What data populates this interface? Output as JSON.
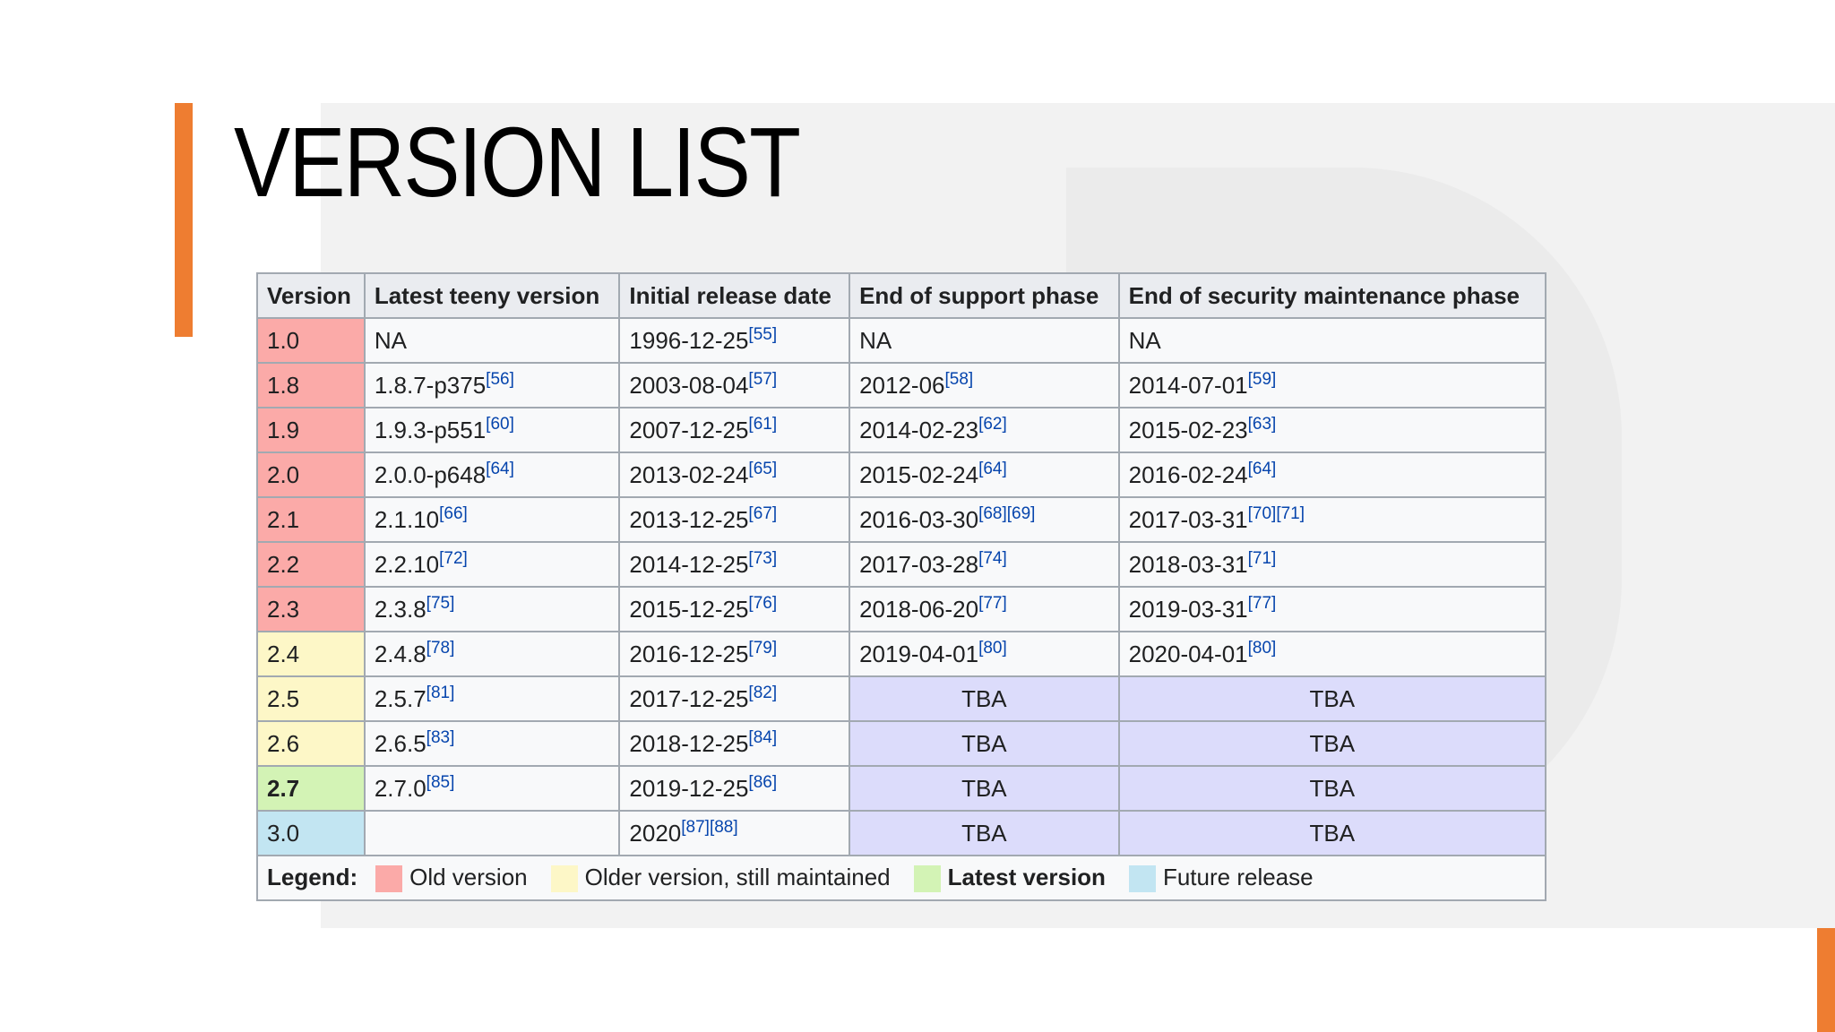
{
  "header": {
    "title": "VERSION LIST"
  },
  "table": {
    "columns": [
      "Version",
      "Latest teeny version",
      "Initial release date",
      "End of support phase",
      "End of security maintenance phase"
    ],
    "rows": [
      {
        "color": "#fbaaa8",
        "cells": [
          "1.0",
          {
            "text": "NA"
          },
          {
            "text": "1996-12-25",
            "ref": "[55]"
          },
          {
            "text": "NA"
          },
          {
            "text": "NA"
          }
        ]
      },
      {
        "color": "#fbaaa8",
        "cells": [
          "1.8",
          {
            "text": "1.8.7-p375",
            "ref": "[56]"
          },
          {
            "text": "2003-08-04",
            "ref": "[57]"
          },
          {
            "text": "2012-06",
            "ref": "[58]"
          },
          {
            "text": "2014-07-01",
            "ref": "[59]"
          }
        ]
      },
      {
        "color": "#fbaaa8",
        "cells": [
          "1.9",
          {
            "text": "1.9.3-p551",
            "ref": "[60]"
          },
          {
            "text": "2007-12-25",
            "ref": "[61]"
          },
          {
            "text": "2014-02-23",
            "ref": "[62]"
          },
          {
            "text": "2015-02-23",
            "ref": "[63]"
          }
        ]
      },
      {
        "color": "#fbaaa8",
        "cells": [
          "2.0",
          {
            "text": "2.0.0-p648",
            "ref": "[64]"
          },
          {
            "text": "2013-02-24",
            "ref": "[65]"
          },
          {
            "text": "2015-02-24",
            "ref": "[64]"
          },
          {
            "text": "2016-02-24",
            "ref": "[64]"
          }
        ]
      },
      {
        "color": "#fbaaa8",
        "cells": [
          "2.1",
          {
            "text": "2.1.10",
            "ref": "[66]"
          },
          {
            "text": "2013-12-25",
            "ref": "[67]"
          },
          {
            "text": "2016-03-30",
            "ref": "[68][69]"
          },
          {
            "text": "2017-03-31",
            "ref": "[70][71]"
          }
        ]
      },
      {
        "color": "#fbaaa8",
        "cells": [
          "2.2",
          {
            "text": "2.2.10",
            "ref": "[72]"
          },
          {
            "text": "2014-12-25",
            "ref": "[73]"
          },
          {
            "text": "2017-03-28",
            "ref": "[74]"
          },
          {
            "text": "2018-03-31",
            "ref": "[71]"
          }
        ]
      },
      {
        "color": "#fbaaa8",
        "cells": [
          "2.3",
          {
            "text": "2.3.8",
            "ref": "[75]"
          },
          {
            "text": "2015-12-25",
            "ref": "[76]"
          },
          {
            "text": "2018-06-20",
            "ref": "[77]"
          },
          {
            "text": "2019-03-31",
            "ref": "[77]"
          }
        ]
      },
      {
        "color": "#fdf7c7",
        "cells": [
          "2.4",
          {
            "text": "2.4.8",
            "ref": "[78]"
          },
          {
            "text": "2016-12-25",
            "ref": "[79]"
          },
          {
            "text": "2019-04-01",
            "ref": "[80]"
          },
          {
            "text": "2020-04-01",
            "ref": "[80]"
          }
        ]
      },
      {
        "color": "#fdf7c7",
        "cells": [
          "2.5",
          {
            "text": "2.5.7",
            "ref": "[81]"
          },
          {
            "text": "2017-12-25",
            "ref": "[82]"
          },
          {
            "text": "TBA",
            "color": "#dcdcfb"
          },
          {
            "text": "TBA",
            "color": "#dcdcfb"
          }
        ]
      },
      {
        "color": "#fdf7c7",
        "cells": [
          "2.6",
          {
            "text": "2.6.5",
            "ref": "[83]"
          },
          {
            "text": "2018-12-25",
            "ref": "[84]"
          },
          {
            "text": "TBA",
            "color": "#dcdcfb"
          },
          {
            "text": "TBA",
            "color": "#dcdcfb"
          }
        ]
      },
      {
        "color": "#d3f3b5",
        "bold": true,
        "cells": [
          "2.7",
          {
            "text": "2.7.0",
            "ref": "[85]"
          },
          {
            "text": "2019-12-25",
            "ref": "[86]"
          },
          {
            "text": "TBA",
            "color": "#dcdcfb"
          },
          {
            "text": "TBA",
            "color": "#dcdcfb"
          }
        ]
      },
      {
        "color": "#c2e5f2",
        "cells": [
          "3.0",
          null,
          {
            "text": "2020",
            "ref": "[87][88]"
          },
          {
            "text": "TBA",
            "color": "#dcdcfb"
          },
          {
            "text": "TBA",
            "color": "#dcdcfb"
          }
        ]
      }
    ],
    "legend": {
      "label": "Legend:",
      "items": [
        {
          "label": "Old version",
          "color": "#fbaaa8"
        },
        {
          "label": "Older version, still maintained",
          "color": "#fdf7c7"
        },
        {
          "label": "Latest version",
          "color": "#d3f3b5",
          "bold": true
        },
        {
          "label": "Future release",
          "color": "#c2e5f2"
        }
      ]
    }
  }
}
